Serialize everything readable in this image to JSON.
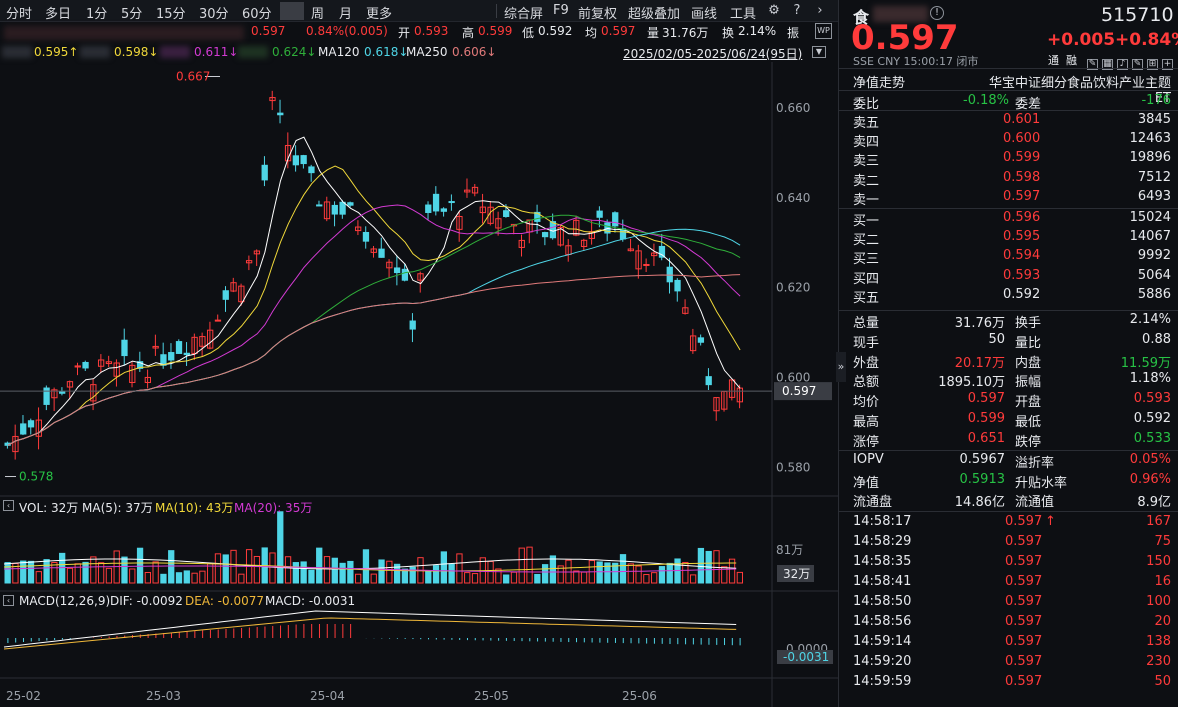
{
  "toolbar": {
    "periods": [
      "分时",
      "多日",
      "1分",
      "5分",
      "15分",
      "30分",
      "60分",
      "",
      "周",
      "月",
      "更多"
    ],
    "tools": [
      "综合屏",
      "F9",
      "前复权",
      "超级叠加",
      "画线",
      "工具"
    ]
  },
  "quote_line": {
    "close": "0.597",
    "change": "0.84%(0.005)",
    "open_label": "开",
    "open": "0.593",
    "high_label": "高",
    "high": "0.599",
    "low_label": "低",
    "low": "0.592",
    "avg_label": "均",
    "avg": "0.597",
    "vol_label": "量",
    "vol": "31.76万",
    "turnover_label": "换",
    "turnover": "2.14%",
    "amp_label": "振"
  },
  "ma_line": {
    "ma5": "0.595↑",
    "ma10": "0.598↓",
    "ma20": "0.611↓",
    "ma60": "0.624↓",
    "ma120_label": "MA120",
    "ma120": "0.618↓",
    "ma250_label": "MA250",
    "ma250": "0.606↓",
    "range": "2025/02/05-2025/06/24(95日)"
  },
  "chart_data": {
    "type": "candlestick",
    "ylim": [
      0.575,
      0.668
    ],
    "yticks": [
      "0.660",
      "0.640",
      "0.620",
      "0.600",
      "0.580"
    ],
    "xticks": [
      "25-02",
      "25-03",
      "25-04",
      "25-05",
      "25-06"
    ],
    "high_marker": "0.667",
    "low_marker": "0.578",
    "last_price": "0.597",
    "ma_colors": {
      "ma5": "#ffffff",
      "ma10": "#f0d83a",
      "ma20": "#d23ad2",
      "ma60": "#2fae3a",
      "ma120": "#4fd5e6",
      "ma250": "#e07a7a"
    }
  },
  "volume_panel": {
    "label_vol": "VOL: 32万",
    "label_ma5": "MA(5): 37万",
    "label_ma10": "MA(10): 43万",
    "label_ma20": "MA(20): 35万",
    "tick_top": "81万",
    "tick_last": "32万"
  },
  "macd_panel": {
    "label_title": "MACD(12,26,9)",
    "label_dif": "DIF: -0.0092",
    "label_dea": "DEA: -0.0077",
    "label_macd": "MACD: -0.0031",
    "tick_zero": "0.0000",
    "tick_last": "-0.0031"
  },
  "right": {
    "name": "食",
    "code": "515710",
    "price": "0.597",
    "change": "+0.005",
    "change_pct": "+0.84%",
    "exchange_line": "SSE  CNY  15:00:17  闭市",
    "tab_nav": "净值走势",
    "fund_name": "华宝中证细分食品饮料产业主题ET",
    "weibi_label": "委比",
    "weibi": "-0.18%",
    "weicha_label": "委差",
    "weicha": "-176",
    "asks": [
      {
        "label": "卖五",
        "price": "0.601",
        "vol": "3845"
      },
      {
        "label": "卖四",
        "price": "0.600",
        "vol": "12463"
      },
      {
        "label": "卖三",
        "price": "0.599",
        "vol": "19896"
      },
      {
        "label": "卖二",
        "price": "0.598",
        "vol": "7512"
      },
      {
        "label": "卖一",
        "price": "0.597",
        "vol": "6493"
      }
    ],
    "bids": [
      {
        "label": "买一",
        "price": "0.596",
        "vol": "15024"
      },
      {
        "label": "买二",
        "price": "0.595",
        "vol": "14067"
      },
      {
        "label": "买三",
        "price": "0.594",
        "vol": "9992"
      },
      {
        "label": "买四",
        "price": "0.593",
        "vol": "5064"
      },
      {
        "label": "买五",
        "price": "0.592",
        "vol": "5886"
      }
    ],
    "stats": [
      {
        "l1": "总量",
        "v1": "31.76万",
        "c1": "white",
        "l2": "换手",
        "v2": "2.14%",
        "c2": "white"
      },
      {
        "l1": "现手",
        "v1": "50",
        "c1": "white",
        "l2": "量比",
        "v2": "0.88",
        "c2": "white"
      },
      {
        "l1": "外盘",
        "v1": "20.17万",
        "c1": "red",
        "l2": "内盘",
        "v2": "11.59万",
        "c2": "green"
      },
      {
        "l1": "总额",
        "v1": "1895.10万",
        "c1": "white",
        "l2": "振幅",
        "v2": "1.18%",
        "c2": "white"
      },
      {
        "l1": "均价",
        "v1": "0.597",
        "c1": "red",
        "l2": "开盘",
        "v2": "0.593",
        "c2": "red"
      },
      {
        "l1": "最高",
        "v1": "0.599",
        "c1": "red",
        "l2": "最低",
        "v2": "0.592",
        "c2": "white"
      },
      {
        "l1": "涨停",
        "v1": "0.651",
        "c1": "red",
        "l2": "跌停",
        "v2": "0.533",
        "c2": "green"
      }
    ],
    "nav_stats": [
      {
        "l1": "IOPV",
        "v1": "0.5967",
        "c1": "white",
        "l2": "溢折率",
        "v2": "0.05%",
        "c2": "red"
      },
      {
        "l1": "净值",
        "v1": "0.5913",
        "c1": "green",
        "l2": "升贴水率",
        "v2": "0.96%",
        "c2": "red"
      },
      {
        "l1": "流通盘",
        "v1": "14.86亿",
        "c1": "white",
        "l2": "流通值",
        "v2": "8.9亿",
        "c2": "white"
      }
    ],
    "ticks": [
      {
        "time": "14:58:17",
        "price": "0.597",
        "arrow": "↑",
        "vol": "167"
      },
      {
        "time": "14:58:29",
        "price": "0.597",
        "arrow": "",
        "vol": "75"
      },
      {
        "time": "14:58:35",
        "price": "0.597",
        "arrow": "",
        "vol": "150"
      },
      {
        "time": "14:58:41",
        "price": "0.597",
        "arrow": "",
        "vol": "16"
      },
      {
        "time": "14:58:50",
        "price": "0.597",
        "arrow": "",
        "vol": "100"
      },
      {
        "time": "14:58:56",
        "price": "0.597",
        "arrow": "",
        "vol": "20"
      },
      {
        "time": "14:59:14",
        "price": "0.597",
        "arrow": "",
        "vol": "138"
      },
      {
        "time": "14:59:20",
        "price": "0.597",
        "arrow": "",
        "vol": "230"
      },
      {
        "time": "14:59:59",
        "price": "0.597",
        "arrow": "",
        "vol": "50"
      }
    ],
    "tong": "通",
    "rong": "融"
  }
}
